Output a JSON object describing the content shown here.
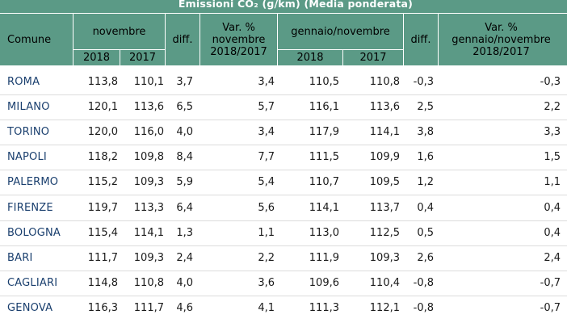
{
  "title": "Emissioni CO₂ (g/km)  (Media ponderata)",
  "headers": {
    "comune": "Comune",
    "novembre": "novembre",
    "diff": "diff.",
    "var_nov_line1": "Var. %",
    "var_nov_line2": "novembre",
    "var_nov_line3": "2018/2017",
    "gen_nov": "gennaio/novembre",
    "diff2": "diff.",
    "var_gen_line1": "Var. %",
    "var_gen_line2": "gennaio/novembre",
    "var_gen_line3": "2018/2017",
    "y2018_a": "2018",
    "y2017_a": "2017",
    "y2018_b": "2018",
    "y2017_b": "2017"
  },
  "rows": [
    {
      "comune": "ROMA",
      "n2018": "113,8",
      "n2017": "110,1",
      "diff": "3,7",
      "var": "3,4",
      "g2018": "110,5",
      "g2017": "110,8",
      "gdiff": "-0,3",
      "gvar": "-0,3"
    },
    {
      "comune": "MILANO",
      "n2018": "120,1",
      "n2017": "113,6",
      "diff": "6,5",
      "var": "5,7",
      "g2018": "116,1",
      "g2017": "113,6",
      "gdiff": "2,5",
      "gvar": "2,2"
    },
    {
      "comune": "TORINO",
      "n2018": "120,0",
      "n2017": "116,0",
      "diff": "4,0",
      "var": "3,4",
      "g2018": "117,9",
      "g2017": "114,1",
      "gdiff": "3,8",
      "gvar": "3,3"
    },
    {
      "comune": "NAPOLI",
      "n2018": "118,2",
      "n2017": "109,8",
      "diff": "8,4",
      "var": "7,7",
      "g2018": "111,5",
      "g2017": "109,9",
      "gdiff": "1,6",
      "gvar": "1,5"
    },
    {
      "comune": "PALERMO",
      "n2018": "115,2",
      "n2017": "109,3",
      "diff": "5,9",
      "var": "5,4",
      "g2018": "110,7",
      "g2017": "109,5",
      "gdiff": "1,2",
      "gvar": "1,1"
    },
    {
      "comune": "FIRENZE",
      "n2018": "119,7",
      "n2017": "113,3",
      "diff": "6,4",
      "var": "5,6",
      "g2018": "114,1",
      "g2017": "113,7",
      "gdiff": "0,4",
      "gvar": "0,4"
    },
    {
      "comune": "BOLOGNA",
      "n2018": "115,4",
      "n2017": "114,1",
      "diff": "1,3",
      "var": "1,1",
      "g2018": "113,0",
      "g2017": "112,5",
      "gdiff": "0,5",
      "gvar": "0,4"
    },
    {
      "comune": "BARI",
      "n2018": "111,7",
      "n2017": "109,3",
      "diff": "2,4",
      "var": "2,2",
      "g2018": "111,9",
      "g2017": "109,3",
      "gdiff": "2,6",
      "gvar": "2,4"
    },
    {
      "comune": "CAGLIARI",
      "n2018": "114,8",
      "n2017": "110,8",
      "diff": "4,0",
      "var": "3,6",
      "g2018": "109,6",
      "g2017": "110,4",
      "gdiff": "-0,8",
      "gvar": "-0,7"
    },
    {
      "comune": "GENOVA",
      "n2018": "116,3",
      "n2017": "111,7",
      "diff": "4,6",
      "var": "4,1",
      "g2018": "111,3",
      "g2017": "112,1",
      "gdiff": "-0,8",
      "gvar": "-0,7"
    }
  ]
}
